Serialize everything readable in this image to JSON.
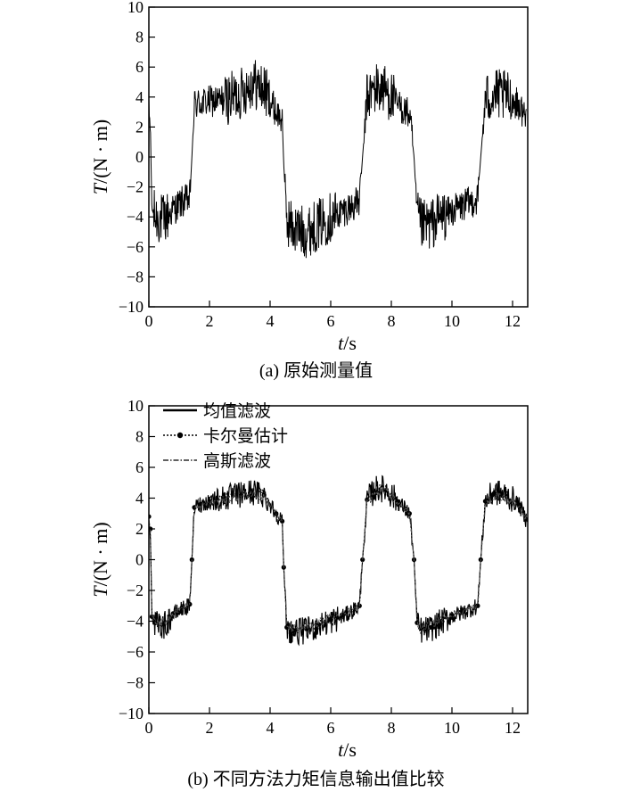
{
  "chart_data": [
    {
      "type": "line",
      "caption": "(a) 原始测量值",
      "xlabel_italic": "t",
      "xlabel_rest": "/s",
      "ylabel_italic": "T",
      "ylabel_rest": "/(N · m)",
      "xlim": [
        0,
        12.5
      ],
      "ylim": [
        -10,
        10
      ],
      "xticks": [
        0,
        2,
        4,
        6,
        8,
        10,
        12
      ],
      "yticks": [
        -10,
        -8,
        -6,
        -4,
        -2,
        0,
        2,
        4,
        6,
        8,
        10
      ],
      "xtick_labels": [
        "0",
        "2",
        "4",
        "6",
        "8",
        "10",
        "12"
      ],
      "ytick_labels": [
        "−10",
        "−8",
        "−6",
        "−4",
        "−2",
        "0",
        "2",
        "4",
        "6",
        "8",
        "10"
      ],
      "grid": false,
      "series": [
        {
          "color": "#000000",
          "x": [
            0,
            0.05,
            0.1,
            0.2,
            0.5,
            0.8,
            1.1,
            1.35,
            1.42,
            1.5,
            1.7,
            2.0,
            2.5,
            3.0,
            3.4,
            3.8,
            4.2,
            4.4,
            4.45,
            4.55,
            4.8,
            5.2,
            5.6,
            6.0,
            6.5,
            6.95,
            7.05,
            7.2,
            7.5,
            7.8,
            8.2,
            8.6,
            8.75,
            8.85,
            9.0,
            9.3,
            9.6,
            10.0,
            10.4,
            10.85,
            10.95,
            11.1,
            11.4,
            11.8,
            12.2,
            12.45
          ],
          "y": [
            3.0,
            2.0,
            -3.5,
            -4.0,
            -4.2,
            -3.5,
            -3.0,
            -2.8,
            0.0,
            3.5,
            3.6,
            3.7,
            3.8,
            4.2,
            5.0,
            4.5,
            3.0,
            2.5,
            -0.5,
            -4.2,
            -4.8,
            -5.0,
            -4.5,
            -4.0,
            -3.5,
            -3.0,
            0.0,
            4.0,
            4.6,
            4.5,
            3.5,
            2.8,
            0.0,
            -4.0,
            -4.6,
            -4.5,
            -4.0,
            -3.6,
            -3.2,
            -2.8,
            0.0,
            3.8,
            4.2,
            4.0,
            3.5,
            2.6
          ]
        }
      ]
    },
    {
      "type": "line",
      "caption": "(b) 不同方法力矩信息输出值比较",
      "xlabel_italic": "t",
      "xlabel_rest": "/s",
      "ylabel_italic": "T",
      "ylabel_rest": "/(N · m)",
      "xlim": [
        0,
        12.5
      ],
      "ylim": [
        -10,
        10
      ],
      "xticks": [
        0,
        2,
        4,
        6,
        8,
        10,
        12
      ],
      "yticks": [
        -10,
        -8,
        -6,
        -4,
        -2,
        0,
        2,
        4,
        6,
        8,
        10
      ],
      "xtick_labels": [
        "0",
        "2",
        "4",
        "6",
        "8",
        "10",
        "12"
      ],
      "ytick_labels": [
        "−10",
        "−8",
        "−6",
        "−4",
        "−2",
        "0",
        "2",
        "4",
        "6",
        "8",
        "10"
      ],
      "grid": false,
      "legend_position": "top-left",
      "series": [
        {
          "name": "均值滤波",
          "style": "solid",
          "color": "#000000",
          "x": [
            0,
            0.05,
            0.1,
            0.2,
            0.5,
            0.8,
            1.1,
            1.35,
            1.42,
            1.5,
            1.7,
            2.0,
            2.5,
            3.0,
            3.4,
            3.8,
            4.2,
            4.4,
            4.45,
            4.55,
            4.8,
            5.2,
            5.6,
            6.0,
            6.5,
            6.95,
            7.05,
            7.2,
            7.5,
            7.8,
            8.2,
            8.6,
            8.75,
            8.85,
            9.0,
            9.3,
            9.6,
            10.0,
            10.4,
            10.85,
            10.95,
            11.1,
            11.4,
            11.8,
            12.2,
            12.45
          ],
          "y": [
            2.8,
            2.0,
            -3.8,
            -4.2,
            -4.3,
            -3.6,
            -3.2,
            -3.0,
            0.0,
            3.4,
            3.6,
            3.8,
            4.0,
            4.2,
            4.4,
            4.2,
            3.0,
            2.5,
            -0.5,
            -4.5,
            -4.7,
            -4.6,
            -4.3,
            -4.0,
            -3.6,
            -3.0,
            0.0,
            3.9,
            4.6,
            4.6,
            3.8,
            3.0,
            0.0,
            -4.2,
            -4.6,
            -4.5,
            -4.1,
            -3.7,
            -3.4,
            -3.0,
            0.0,
            3.8,
            4.4,
            4.2,
            3.6,
            2.6
          ]
        },
        {
          "name": "卡尔曼估计",
          "style": "dotted-marker",
          "color": "#000000",
          "x": [
            0,
            0.05,
            0.1,
            0.2,
            0.5,
            0.8,
            1.1,
            1.35,
            1.42,
            1.5,
            1.7,
            2.0,
            2.5,
            3.0,
            3.4,
            3.8,
            4.2,
            4.4,
            4.45,
            4.55,
            4.8,
            5.2,
            5.6,
            6.0,
            6.5,
            6.95,
            7.05,
            7.2,
            7.5,
            7.8,
            8.2,
            8.6,
            8.75,
            8.85,
            9.0,
            9.3,
            9.6,
            10.0,
            10.4,
            10.85,
            10.95,
            11.1,
            11.4,
            11.8,
            12.2,
            12.45
          ],
          "y": [
            2.8,
            2.0,
            -3.7,
            -4.1,
            -4.2,
            -3.5,
            -3.1,
            -2.9,
            0.0,
            3.4,
            3.6,
            3.8,
            4.0,
            4.2,
            4.4,
            4.2,
            3.0,
            2.5,
            -0.5,
            -4.4,
            -4.6,
            -4.5,
            -4.2,
            -3.9,
            -3.5,
            -3.0,
            0.0,
            3.9,
            4.5,
            4.5,
            3.8,
            3.0,
            0.0,
            -4.1,
            -4.5,
            -4.4,
            -4.0,
            -3.6,
            -3.3,
            -3.0,
            0.0,
            3.8,
            4.3,
            4.1,
            3.6,
            2.6
          ]
        },
        {
          "name": "高斯滤波",
          "style": "dashdot",
          "color": "#000000",
          "x": [
            0,
            0.05,
            0.1,
            0.2,
            0.5,
            0.8,
            1.1,
            1.35,
            1.42,
            1.5,
            1.7,
            2.0,
            2.5,
            3.0,
            3.4,
            3.8,
            4.2,
            4.4,
            4.45,
            4.55,
            4.8,
            5.2,
            5.6,
            6.0,
            6.5,
            6.95,
            7.05,
            7.2,
            7.5,
            7.8,
            8.2,
            8.6,
            8.75,
            8.85,
            9.0,
            9.3,
            9.6,
            10.0,
            10.4,
            10.85,
            10.95,
            11.1,
            11.4,
            11.8,
            12.2,
            12.45
          ],
          "y": [
            2.7,
            2.0,
            -3.6,
            -4.0,
            -4.1,
            -3.5,
            -3.1,
            -2.9,
            0.0,
            3.3,
            3.5,
            3.7,
            3.9,
            4.1,
            4.3,
            4.1,
            3.0,
            2.5,
            -0.5,
            -4.3,
            -4.5,
            -4.4,
            -4.1,
            -3.8,
            -3.5,
            -3.0,
            0.0,
            3.8,
            4.4,
            4.4,
            3.7,
            3.0,
            0.0,
            -4.0,
            -4.4,
            -4.3,
            -3.9,
            -3.6,
            -3.3,
            -3.0,
            0.0,
            3.7,
            4.2,
            4.0,
            3.5,
            2.6
          ]
        }
      ]
    }
  ]
}
